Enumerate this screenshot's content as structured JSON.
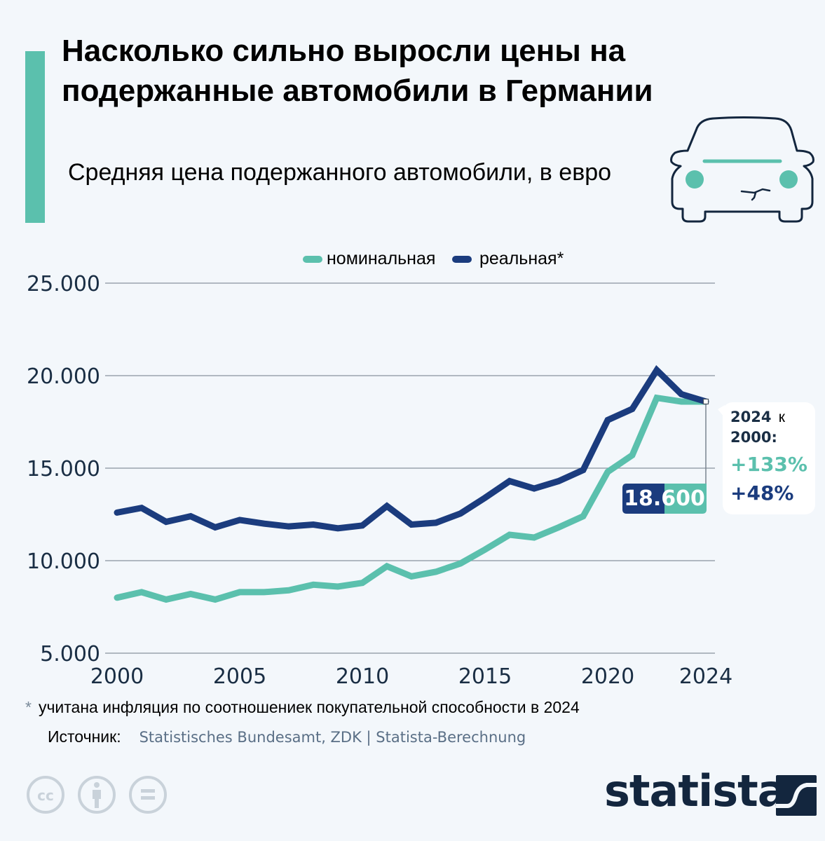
{
  "header": {
    "title": "Насколько сильно выросли цены на подержанные автомобили в Германии",
    "subtitle": "Средняя цена подержанного автомобили, в евро",
    "icon": "car-icon"
  },
  "colors": {
    "accent": "#5bc0ad",
    "nominal": "#5bc0ad",
    "real": "#1b3c7e",
    "text_dark": "#1a2e44",
    "background": "#f3f7fb"
  },
  "chart_data": {
    "type": "line",
    "title": "Средняя цена подержанного автомобили, в евро",
    "xlabel": "",
    "ylabel": "",
    "x": [
      2000,
      2001,
      2002,
      2003,
      2004,
      2005,
      2006,
      2007,
      2008,
      2009,
      2010,
      2011,
      2012,
      2013,
      2014,
      2015,
      2016,
      2017,
      2018,
      2019,
      2020,
      2021,
      2022,
      2023,
      2024
    ],
    "xticks": [
      2000,
      2005,
      2010,
      2015,
      2020,
      2024
    ],
    "xtick_labels": [
      "2000",
      "2005",
      "2010",
      "2015",
      "2020",
      "2024"
    ],
    "yticks": [
      5000,
      10000,
      15000,
      20000,
      25000
    ],
    "ytick_labels": [
      "5.000",
      "10.000",
      "15.000",
      "20.000",
      "25.000"
    ],
    "xlim": [
      2000,
      2024
    ],
    "ylim": [
      5000,
      25000
    ],
    "grid": true,
    "legend_position": "top-center",
    "series": [
      {
        "name": "номинальная",
        "color": "#5bc0ad",
        "values": [
          8000,
          8300,
          7900,
          8200,
          7900,
          8300,
          8300,
          8400,
          8700,
          8600,
          8800,
          9700,
          9150,
          9400,
          9850,
          10600,
          11400,
          11250,
          11800,
          12400,
          14800,
          15700,
          18800,
          18600,
          18600
        ]
      },
      {
        "name": "реальная*",
        "color": "#1b3c7e",
        "values": [
          12600,
          12850,
          12100,
          12400,
          11800,
          12200,
          12000,
          11850,
          11950,
          11750,
          11900,
          12950,
          11950,
          12050,
          12550,
          13400,
          14300,
          13900,
          14300,
          14900,
          17600,
          18200,
          20300,
          19000,
          18600
        ]
      }
    ],
    "annotations": {
      "end_value_label": "18.600",
      "comparison_label_year": "2024",
      "comparison_label_k": "к",
      "comparison_label_base": "2000:",
      "nominal_change": "+133%",
      "real_change": "+48%"
    }
  },
  "footer": {
    "footnote_marker": "*",
    "footnote": "учитана инфляция по соотношениек покупательной способности в 2024",
    "source_label": "Источник:",
    "source_value": "Statistisches Bundesamt, ZDK | Statista-Berechnung",
    "license_icons": [
      "cc-icon",
      "attribution-icon",
      "no-derivatives-icon"
    ],
    "brand": "statista"
  }
}
